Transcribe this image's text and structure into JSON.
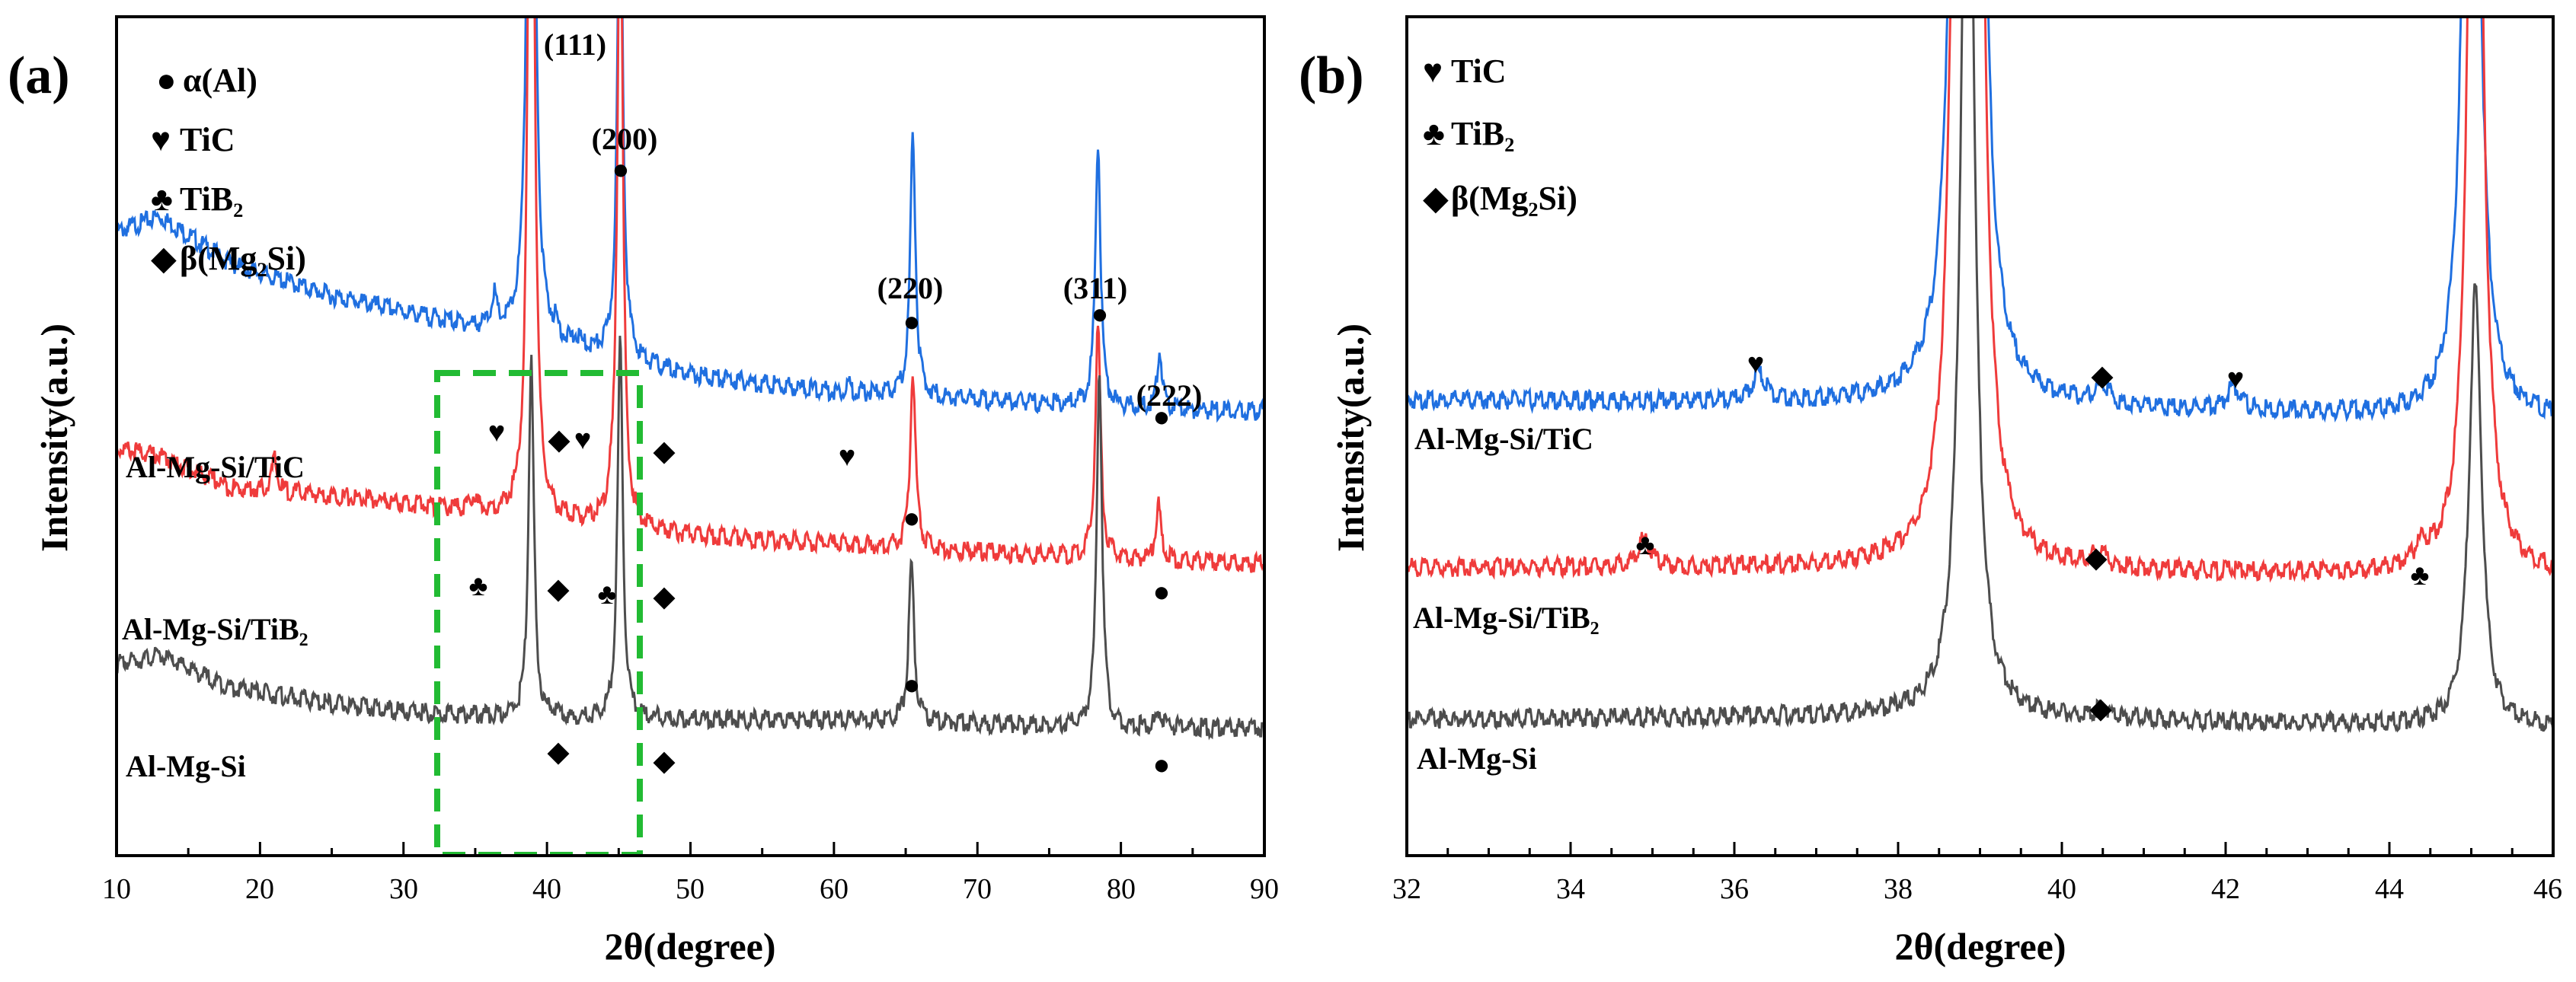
{
  "figure": {
    "panels": [
      {
        "label": "(a)",
        "xlabel": "2θ(degree)",
        "ylabel": "Intensity(a.u.)",
        "xlim": [
          10,
          90
        ],
        "xticks": [
          "10",
          "20",
          "30",
          "40",
          "50",
          "60",
          "70",
          "80",
          "90"
        ],
        "legend": [
          {
            "symbol": "●",
            "text": "α(Al)"
          },
          {
            "symbol": "♥",
            "text": "TiC"
          },
          {
            "symbol": "♣",
            "text": "TiB₂"
          },
          {
            "symbol": "◆",
            "text": "β(Mg₂Si)"
          }
        ],
        "series_labels": [
          "Al-Mg-Si/TiC",
          "Al-Mg-Si/TiB₂",
          "Al-Mg-Si"
        ],
        "hkl": [
          "(111)",
          "(200)",
          "(220)",
          "(311)",
          "(222)"
        ]
      },
      {
        "label": "(b)",
        "xlabel": "2θ(degree)",
        "ylabel": "Intensity(a.u.)",
        "xlim": [
          32,
          46
        ],
        "xticks": [
          "32",
          "34",
          "36",
          "38",
          "40",
          "42",
          "44",
          "46"
        ],
        "legend": [
          {
            "symbol": "♥",
            "text": "TiC"
          },
          {
            "symbol": "♣",
            "text": "TiB₂"
          },
          {
            "symbol": "◆",
            "text": "β(Mg₂Si)"
          }
        ],
        "series_labels": [
          "Al-Mg-Si/TiC",
          "Al-Mg-Si/TiB₂",
          "Al-Mg-Si"
        ]
      }
    ],
    "colors": {
      "TiC": "#1f6fe0",
      "TiB2": "#ef3b3b",
      "AlMgSi": "#4d4d4d",
      "box": "#22bb33"
    }
  },
  "chart_data": [
    {
      "type": "line",
      "panel": "(a)",
      "title": "",
      "xlabel": "2θ(degree)",
      "ylabel": "Intensity(a.u.)",
      "xlim": [
        10,
        90
      ],
      "yticks_shown": false,
      "highlight_range": [
        32.5,
        46.5
      ],
      "series": [
        {
          "name": "Al-Mg-Si/TiC",
          "color": "#1f6fe0",
          "baseline": [
            [
              10,
              0.78
            ],
            [
              13,
              0.8
            ],
            [
              18,
              0.74
            ],
            [
              25,
              0.7
            ],
            [
              30,
              0.68
            ],
            [
              40,
              0.64
            ],
            [
              50,
              0.6
            ],
            [
              60,
              0.58
            ],
            [
              70,
              0.57
            ],
            [
              80,
              0.56
            ],
            [
              90,
              0.555
            ]
          ],
          "peaks": [
            [
              36.3,
              0.04
            ],
            [
              38.9,
              1.6
            ],
            [
              40.6,
              0.012
            ],
            [
              42.1,
              0.01
            ],
            [
              45.1,
              0.66
            ],
            [
              61,
              0.01
            ],
            [
              65.5,
              0.33
            ],
            [
              78.4,
              0.33
            ],
            [
              82.7,
              0.07
            ]
          ]
        },
        {
          "name": "Al-Mg-Si/TiB₂",
          "color": "#ef3b3b",
          "baseline": [
            [
              10,
              0.51
            ],
            [
              13,
              0.5
            ],
            [
              18,
              0.46
            ],
            [
              25,
              0.45
            ],
            [
              30,
              0.44
            ],
            [
              40,
              0.42
            ],
            [
              50,
              0.4
            ],
            [
              60,
              0.39
            ],
            [
              70,
              0.38
            ],
            [
              80,
              0.37
            ],
            [
              90,
              0.365
            ]
          ],
          "peaks": [
            [
              21,
              0.04
            ],
            [
              34.9,
              0.015
            ],
            [
              38.9,
              1.4
            ],
            [
              44.4,
              0.012
            ],
            [
              45.1,
              0.85
            ],
            [
              65.5,
              0.22
            ],
            [
              78.4,
              0.29
            ],
            [
              82.6,
              0.07
            ]
          ]
        },
        {
          "name": "Al-Mg-Si",
          "color": "#4d4d4d",
          "baseline": [
            [
              10,
              0.24
            ],
            [
              13,
              0.25
            ],
            [
              18,
              0.21
            ],
            [
              25,
              0.19
            ],
            [
              30,
              0.18
            ],
            [
              40,
              0.17
            ],
            [
              50,
              0.17
            ],
            [
              60,
              0.17
            ],
            [
              70,
              0.165
            ],
            [
              80,
              0.16
            ],
            [
              90,
              0.16
            ]
          ],
          "peaks": [
            [
              38.9,
              0.45
            ],
            [
              40.5,
              0.008
            ],
            [
              45.1,
              0.47
            ],
            [
              65.4,
              0.2
            ],
            [
              78.5,
              0.45
            ],
            [
              82.7,
              0.02
            ]
          ]
        }
      ],
      "annotations": [
        {
          "text": "(111)",
          "x": 38.9
        },
        {
          "text": "(200)",
          "x": 45.1
        },
        {
          "text": "(220)",
          "x": 65.5
        },
        {
          "text": "(311)",
          "x": 78.4
        },
        {
          "text": "(222)",
          "x": 82.7
        }
      ]
    },
    {
      "type": "line",
      "panel": "(b)",
      "title": "",
      "xlabel": "2θ(degree)",
      "ylabel": "Intensity(a.u.)",
      "xlim": [
        32,
        46
      ],
      "yticks_shown": false,
      "series": [
        {
          "name": "Al-Mg-Si/TiC",
          "color": "#1f6fe0",
          "baseline": [
            [
              32,
              0.57
            ],
            [
              38,
              0.565
            ],
            [
              40,
              0.56
            ],
            [
              46,
              0.545
            ]
          ],
          "peaks": [
            [
              36.3,
              0.035
            ],
            [
              38.75,
              1.5
            ],
            [
              38.95,
              1.5
            ],
            [
              40.5,
              0.025
            ],
            [
              42.1,
              0.03
            ],
            [
              45.0,
              1.5
            ]
          ]
        },
        {
          "name": "Al-Mg-Si/TiB₂",
          "color": "#ef3b3b",
          "baseline": [
            [
              32,
              0.36
            ],
            [
              38,
              0.36
            ],
            [
              40,
              0.355
            ],
            [
              46,
              0.35
            ]
          ],
          "peaks": [
            [
              34.9,
              0.035
            ],
            [
              38.75,
              1.5
            ],
            [
              38.95,
              1.5
            ],
            [
              40.45,
              0.02
            ],
            [
              44.4,
              0.02
            ],
            [
              45.05,
              1.5
            ]
          ]
        },
        {
          "name": "Al-Mg-Si",
          "color": "#4d4d4d",
          "baseline": [
            [
              32,
              0.17
            ],
            [
              38,
              0.175
            ],
            [
              40,
              0.17
            ],
            [
              46,
              0.16
            ]
          ],
          "peaks": [
            [
              38.85,
              1.4
            ],
            [
              40.5,
              0.015
            ],
            [
              45.05,
              0.55
            ]
          ]
        }
      ]
    }
  ]
}
